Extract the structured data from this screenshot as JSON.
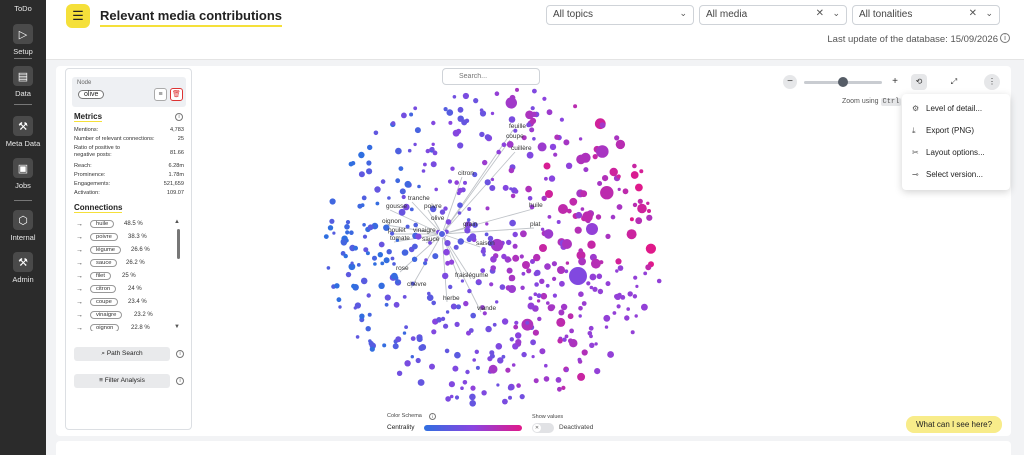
{
  "nav": {
    "items": [
      {
        "label": "ToDo",
        "icon": "todo-icon"
      },
      {
        "label": "Setup",
        "icon": "play-icon"
      },
      {
        "label": "Data",
        "icon": "database-icon"
      },
      {
        "label": "Meta Data",
        "icon": "wrench-icon"
      },
      {
        "label": "Jobs",
        "icon": "briefcase-icon"
      },
      {
        "label": "Internal",
        "icon": "hexagon-icon"
      },
      {
        "label": "Admin",
        "icon": "wrench-icon"
      }
    ]
  },
  "header": {
    "title": "Relevant media contributions",
    "filters": {
      "topics": "All topics",
      "media": "All media",
      "tonalities": "All tonalities"
    },
    "last_update": "Last update of the database: 15/09/2026"
  },
  "panel": {
    "node_label": "Node",
    "node_value": "olive",
    "metrics_title": "Metrics",
    "metrics": [
      {
        "label": "Mentions:",
        "value": "4,783"
      },
      {
        "label": "Number of relevant connections:",
        "value": "25"
      },
      {
        "label": "Ratio of positive to",
        "value": "81.66"
      },
      {
        "label": "negative posts:",
        "value": ""
      },
      {
        "label": "Reach:",
        "value": "6.28m"
      },
      {
        "label": "Prominence:",
        "value": "1.78m"
      },
      {
        "label": "Engagements:",
        "value": "521,659"
      },
      {
        "label": "Activation:",
        "value": "109.07"
      }
    ],
    "connections_title": "Connections",
    "connections": [
      {
        "name": "huile",
        "pct": "48.5 %"
      },
      {
        "name": "poivre",
        "pct": "38.3 %"
      },
      {
        "name": "légume",
        "pct": "26.6 %"
      },
      {
        "name": "sauce",
        "pct": "26.2 %"
      },
      {
        "name": "filet",
        "pct": "25 %"
      },
      {
        "name": "citron",
        "pct": "24 %"
      },
      {
        "name": "coupe",
        "pct": "23.4 %"
      },
      {
        "name": "vinaigre",
        "pct": "23.2 %"
      },
      {
        "name": "oignon",
        "pct": "22.8 %"
      }
    ],
    "path_search": "Path Search",
    "filter_analysis": "Filter Analysis"
  },
  "graph": {
    "search_placeholder": "Search...",
    "labels": [
      {
        "text": "feuille"
      },
      {
        "text": "coupe"
      },
      {
        "text": "cuillère"
      },
      {
        "text": "citron"
      },
      {
        "text": "tranche"
      },
      {
        "text": "gousse"
      },
      {
        "text": "poivre"
      },
      {
        "text": "huile"
      },
      {
        "text": "oignon"
      },
      {
        "text": "olive"
      },
      {
        "text": "grain"
      },
      {
        "text": "plat"
      },
      {
        "text": "poulet"
      },
      {
        "text": "vinaigre"
      },
      {
        "text": "tomate"
      },
      {
        "text": "sauce"
      },
      {
        "text": "saison"
      },
      {
        "text": "rose"
      },
      {
        "text": "frais"
      },
      {
        "text": "légume"
      },
      {
        "text": "chèvre"
      },
      {
        "text": "herbe"
      },
      {
        "text": "viande"
      }
    ],
    "colors": {
      "low": "#2f6fe0",
      "mid": "#8a44e0",
      "high": "#e0198a"
    }
  },
  "zoom": {
    "minus": "−",
    "plus": "+",
    "level": 0.5,
    "hint_prefix": "Zoom using",
    "hint_key": "Ctrl"
  },
  "menu": {
    "items": [
      {
        "label": "Level of detail...",
        "icon": "gear-icon"
      },
      {
        "label": "Export (PNG)",
        "icon": "download-icon"
      },
      {
        "label": "Layout options...",
        "icon": "tools-icon"
      },
      {
        "label": "Select version...",
        "icon": "commit-icon"
      }
    ]
  },
  "legend": {
    "color_schema": "Color Schema",
    "metric": "Centrality",
    "show_values": "Show values",
    "toggle_state": "Deactivated"
  },
  "help": "What can I see here?"
}
